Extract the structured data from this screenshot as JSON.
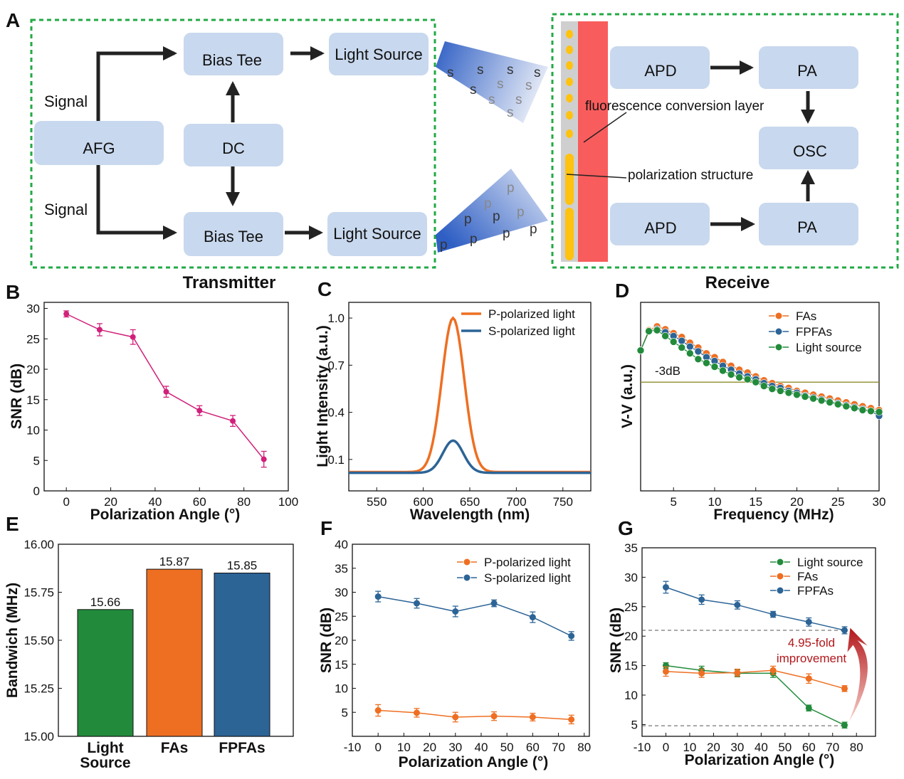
{
  "panels": {
    "A": "A",
    "B": "B",
    "C": "C",
    "D": "D",
    "E": "E",
    "F": "F",
    "G": "G"
  },
  "diagram": {
    "signal_top": "Signal",
    "signal_bottom": "Signal",
    "afg": "AFG",
    "dc": "DC",
    "bias_tee_top": "Bias Tee",
    "bias_tee_bottom": "Bias Tee",
    "light_source_top": "Light Source",
    "light_source_bottom": "Light Source",
    "transmitter": "Transmitter",
    "receive": "Receive",
    "apd_top": "APD",
    "apd_bottom": "APD",
    "pa_top": "PA",
    "pa_bottom": "PA",
    "osc": "OSC",
    "fluorescence": "fluorescence conversion layer",
    "polarization": "polarization structure",
    "s_letter": "s",
    "p_letter": "p"
  },
  "colors": {
    "box": "#c8d8ee",
    "dashed": "#22aa44",
    "red_layer": "#f95c5c",
    "orange": "#ee6f22",
    "blue": "#2c6496",
    "green": "#228b3b",
    "magenta": "#d1207a",
    "olive": "#8b8b2a"
  },
  "chart_data": [
    {
      "id": "B",
      "type": "line",
      "xlabel": "Polarization Angle (°)",
      "ylabel": "SNR (dB)",
      "xlim": [
        -10,
        100
      ],
      "ylim": [
        0,
        31
      ],
      "xticks": [
        0,
        20,
        40,
        60,
        80,
        100
      ],
      "yticks": [
        0,
        5,
        10,
        15,
        20,
        25,
        30
      ],
      "series": [
        {
          "x": [
            0,
            15,
            30,
            45,
            60,
            75,
            89
          ],
          "y": [
            29.1,
            26.5,
            25.3,
            16.3,
            13.2,
            11.5,
            5.2
          ],
          "err": [
            0.5,
            1.0,
            1.2,
            0.9,
            0.8,
            0.9,
            1.3
          ]
        }
      ]
    },
    {
      "id": "C",
      "type": "line",
      "xlabel": "Wavelength (nm)",
      "ylabel": "Light Intensity (a.u.)",
      "xlim": [
        520,
        780
      ],
      "ylim": [
        -0.1,
        1.1
      ],
      "xticks": [
        550,
        600,
        650,
        700,
        750
      ],
      "yticks": [
        0.1,
        0.4,
        0.7,
        1.0
      ],
      "ytick_labels": [
        "0.1",
        "0.4",
        "0.7",
        "1.0"
      ],
      "series": [
        {
          "name": "P-polarized light",
          "center": 632,
          "peak": 1.0,
          "base": 0.02,
          "sigma": 12
        },
        {
          "name": "S-polarized light",
          "center": 632,
          "peak": 0.22,
          "base": 0.015,
          "sigma": 11
        }
      ]
    },
    {
      "id": "D",
      "type": "line",
      "xlabel": "Frequency (MHz)",
      "ylabel": "V-V (a.u.)",
      "xlim": [
        1,
        30
      ],
      "xticks": [
        5,
        10,
        15,
        20,
        25,
        30
      ],
      "reference_label": "-3dB",
      "series": [
        {
          "name": "FAs",
          "x": [
            1,
            2,
            3,
            4,
            5,
            6,
            7,
            8,
            9,
            10,
            11,
            12,
            13,
            14,
            15,
            16,
            17,
            18,
            19,
            20,
            21,
            22,
            23,
            24,
            25,
            26,
            27,
            28,
            29,
            30
          ],
          "y": [
            0.83,
            0.935,
            0.955,
            0.94,
            0.92,
            0.9,
            0.87,
            0.845,
            0.815,
            0.795,
            0.77,
            0.75,
            0.73,
            0.715,
            0.695,
            0.675,
            0.66,
            0.645,
            0.635,
            0.62,
            0.61,
            0.6,
            0.59,
            0.58,
            0.57,
            0.56,
            0.55,
            0.54,
            0.53,
            0.52
          ]
        },
        {
          "name": "FPFAs",
          "x": [
            1,
            2,
            3,
            4,
            5,
            6,
            7,
            8,
            9,
            10,
            11,
            12,
            13,
            14,
            15,
            16,
            17,
            18,
            19,
            20,
            21,
            22,
            23,
            24,
            25,
            26,
            27,
            28,
            29,
            30
          ],
          "y": [
            0.83,
            0.93,
            0.94,
            0.925,
            0.905,
            0.88,
            0.85,
            0.825,
            0.795,
            0.775,
            0.75,
            0.73,
            0.71,
            0.695,
            0.68,
            0.66,
            0.645,
            0.635,
            0.62,
            0.61,
            0.595,
            0.585,
            0.575,
            0.565,
            0.555,
            0.545,
            0.535,
            0.525,
            0.515,
            0.49
          ]
        },
        {
          "name": "Light source",
          "x": [
            1,
            2,
            3,
            4,
            5,
            6,
            7,
            8,
            9,
            10,
            11,
            12,
            13,
            14,
            15,
            16,
            17,
            18,
            19,
            20,
            21,
            22,
            23,
            24,
            25,
            26,
            27,
            28,
            29,
            30
          ],
          "y": [
            0.83,
            0.93,
            0.935,
            0.905,
            0.875,
            0.845,
            0.815,
            0.785,
            0.765,
            0.745,
            0.725,
            0.705,
            0.69,
            0.68,
            0.665,
            0.645,
            0.63,
            0.62,
            0.61,
            0.6,
            0.59,
            0.58,
            0.57,
            0.56,
            0.55,
            0.54,
            0.53,
            0.52,
            0.515,
            0.51
          ]
        }
      ]
    },
    {
      "id": "E",
      "type": "bar",
      "ylabel": "Bandwich (MHz)",
      "ylim": [
        15,
        16
      ],
      "yticks": [
        15,
        15.25,
        15.5,
        15.75,
        16
      ],
      "ytick_labels": [
        "15.00",
        "15.25",
        "15.50",
        "15.75",
        "16.00"
      ],
      "categories": [
        [
          "Light",
          "Source"
        ],
        [
          "FAs"
        ],
        [
          "FPFAs"
        ]
      ],
      "values": [
        15.66,
        15.87,
        15.85
      ],
      "value_labels": [
        "15.66",
        "15.87",
        "15.85"
      ]
    },
    {
      "id": "F",
      "type": "line",
      "xlabel": "Polarization Angle (°)",
      "ylabel": "SNR (dB)",
      "xlim": [
        -10,
        82
      ],
      "ylim": [
        0,
        40
      ],
      "xticks": [
        -10,
        0,
        10,
        20,
        30,
        40,
        50,
        60,
        70,
        80
      ],
      "yticks": [
        5,
        10,
        15,
        20,
        25,
        30,
        35,
        40
      ],
      "series": [
        {
          "name": "P-polarized light",
          "x": [
            0,
            15,
            30,
            45,
            60,
            75
          ],
          "y": [
            5.4,
            4.9,
            4.0,
            4.2,
            4.0,
            3.5
          ],
          "err": [
            1.2,
            0.9,
            1.0,
            0.9,
            0.8,
            0.9
          ]
        },
        {
          "name": "S-polarized light",
          "x": [
            0,
            15,
            30,
            45,
            60,
            75
          ],
          "y": [
            29.1,
            27.7,
            26.0,
            27.7,
            24.8,
            20.9
          ],
          "err": [
            1.1,
            1.0,
            1.1,
            0.7,
            1.1,
            0.9
          ]
        }
      ]
    },
    {
      "id": "G",
      "type": "line",
      "xlabel": "Polarization Angle (°)",
      "ylabel": "SNR (dB)",
      "xlim": [
        -10,
        88
      ],
      "ylim": [
        3,
        35
      ],
      "xticks": [
        -10,
        0,
        10,
        20,
        30,
        40,
        50,
        60,
        70,
        80
      ],
      "yticks": [
        5,
        10,
        15,
        20,
        25,
        30,
        35
      ],
      "annotation": [
        "4.95-fold",
        "improvement"
      ],
      "reference_lines": [
        21,
        4.8
      ],
      "series": [
        {
          "name": "Light source",
          "x": [
            0,
            15,
            30,
            45,
            60,
            75
          ],
          "y": [
            15.0,
            14.2,
            13.7,
            13.7,
            7.8,
            4.9
          ],
          "err": [
            0.5,
            0.7,
            0.6,
            0.7,
            0.5,
            0.5
          ]
        },
        {
          "name": "FAs",
          "x": [
            0,
            15,
            30,
            45,
            60,
            75
          ],
          "y": [
            14.0,
            13.7,
            13.8,
            14.2,
            12.8,
            11.1
          ],
          "err": [
            0.8,
            0.7,
            0.6,
            0.7,
            0.8,
            0.5
          ]
        },
        {
          "name": "FPFAs",
          "x": [
            0,
            15,
            30,
            45,
            60,
            75
          ],
          "y": [
            28.3,
            26.2,
            25.3,
            23.7,
            22.4,
            21.0
          ],
          "err": [
            1.0,
            0.8,
            0.7,
            0.5,
            0.7,
            0.6
          ]
        }
      ]
    }
  ]
}
